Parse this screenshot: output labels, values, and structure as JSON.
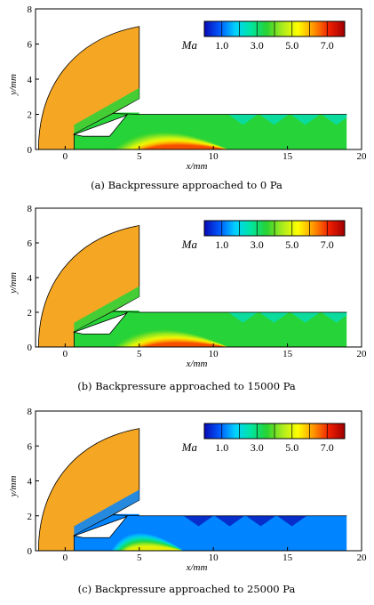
{
  "chart_data": [
    {
      "type": "heatmap",
      "caption": "(a) Backpressure approached to 0 Pa",
      "xlabel": "x/mm",
      "ylabel": "y/mm",
      "xlim": [
        -2,
        20
      ],
      "ylim": [
        0,
        8
      ],
      "xticks": [
        "0",
        "5",
        "10",
        "15",
        "20"
      ],
      "yticks": [
        "0",
        "2",
        "4",
        "6",
        "8"
      ],
      "colorbar": {
        "variable": "Ma",
        "ticks": [
          "1.0",
          "3.0",
          "5.0",
          "7.0"
        ],
        "range": [
          0,
          8
        ]
      },
      "flow": {
        "core_peak_mach": 7.0,
        "core_peak_x": 9.5,
        "core_end_x": 11,
        "channel_mach": 3.5,
        "outer_wall_y": 2
      }
    },
    {
      "type": "heatmap",
      "caption": "(b) Backpressure approached to 15000 Pa",
      "xlabel": "x/mm",
      "ylabel": "y/mm",
      "xlim": [
        -2,
        20
      ],
      "ylim": [
        0,
        8
      ],
      "xticks": [
        "0",
        "5",
        "10",
        "15",
        "20"
      ],
      "yticks": [
        "0",
        "2",
        "4",
        "6",
        "8"
      ],
      "colorbar": {
        "variable": "Ma",
        "ticks": [
          "1.0",
          "3.0",
          "5.0",
          "7.0"
        ],
        "range": [
          0,
          8
        ]
      },
      "flow": {
        "core_peak_mach": 7.0,
        "core_peak_x": 9.5,
        "core_end_x": 11,
        "channel_mach": 3.5,
        "outer_wall_y": 2
      }
    },
    {
      "type": "heatmap",
      "caption": "(c) Backpressure approached to 25000 Pa",
      "xlabel": "x/mm",
      "ylabel": "y/mm",
      "xlim": [
        -2,
        20
      ],
      "ylim": [
        0,
        8
      ],
      "xticks": [
        "0",
        "5",
        "10",
        "15",
        "20"
      ],
      "yticks": [
        "0",
        "2",
        "4",
        "6",
        "8"
      ],
      "colorbar": {
        "variable": "Ma",
        "ticks": [
          "1.0",
          "3.0",
          "5.0",
          "7.0"
        ],
        "range": [
          0,
          8
        ]
      },
      "flow": {
        "core_peak_mach": 5.5,
        "core_peak_x": 6,
        "core_end_x": 8,
        "channel_mach": 1.2,
        "outer_wall_y": 2
      }
    }
  ],
  "colors": {
    "body": "#f5a623",
    "colormap": [
      "#0a0ab4",
      "#005aff",
      "#00d2ff",
      "#00e6a0",
      "#28d232",
      "#aaeb1e",
      "#ffff00",
      "#ff9600",
      "#f01e00",
      "#a00000"
    ]
  }
}
